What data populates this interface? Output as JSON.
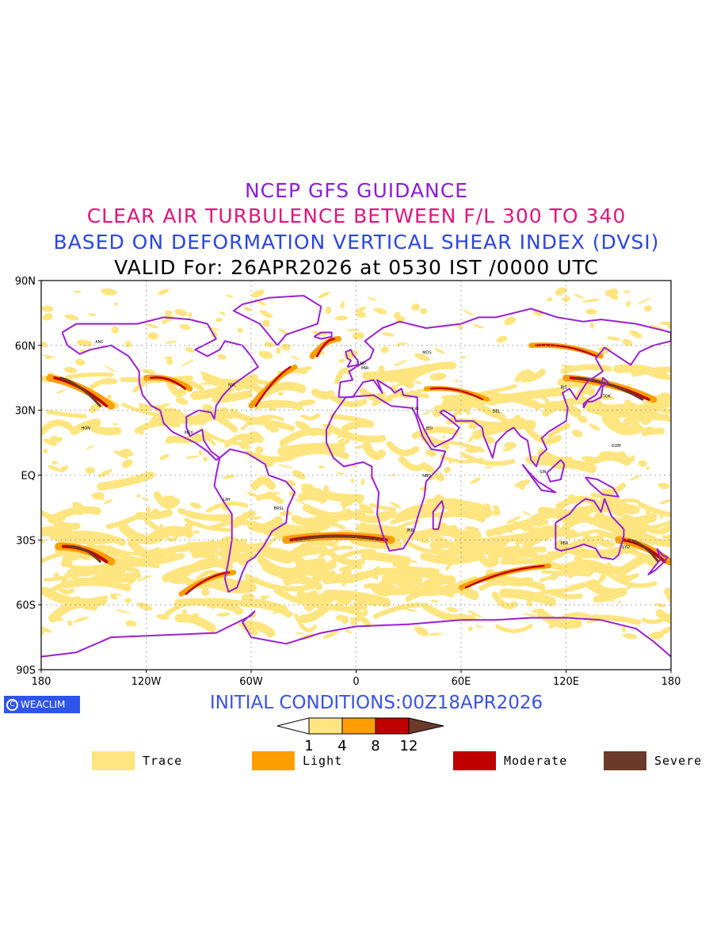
{
  "titles": {
    "line1": "NCEP GFS GUIDANCE",
    "line2": "CLEAR AIR TURBULENCE BETWEEN F/L 300 TO 340",
    "line3": "BASED ON DEFORMATION VERTICAL SHEAR INDEX (DVSI)",
    "line4": "VALID For: 26APR2026 at 0530 IST /0000 UTC"
  },
  "colors": {
    "title1": "#8a1fd6",
    "title2": "#e0157a",
    "title3": "#2a45e6",
    "title4": "#000000",
    "coast": "#9a1fd1",
    "trace": "#ffe580",
    "light": "#ff9e00",
    "moderate": "#c00000",
    "severe": "#6b3a2a",
    "brand_bg": "#2f55e8",
    "init": "#3a52e6"
  },
  "axes": {
    "lat_labels": [
      "90N",
      "60N",
      "30N",
      "EQ",
      "30S",
      "60S",
      "90S"
    ],
    "lon_labels": [
      "180",
      "120W",
      "60W",
      "0",
      "60E",
      "120E",
      "180"
    ]
  },
  "brand": {
    "label": "WEACLIM",
    "icon": "copyright-circle-icon"
  },
  "initial_conditions": "INITIAL CONDITIONS:00Z18APR2026",
  "colorbar": {
    "thresholds": [
      "1",
      "4",
      "8",
      "12"
    ]
  },
  "legend": [
    {
      "label": "Trace",
      "color": "#ffe580"
    },
    {
      "label": "Light",
      "color": "#ff9e00"
    },
    {
      "label": "Moderate",
      "color": "#c00000"
    },
    {
      "label": "Severe",
      "color": "#6b3a2a"
    }
  ],
  "station_labels": [
    "ANC",
    "HON",
    "NYC",
    "MEX",
    "LIM",
    "BRSL",
    "LND",
    "PAR",
    "CAI",
    "JED",
    "MOS",
    "DEL",
    "BJS",
    "TOK",
    "SYD",
    "PER",
    "JNB",
    "NBO",
    "GUM",
    "SIN"
  ]
}
